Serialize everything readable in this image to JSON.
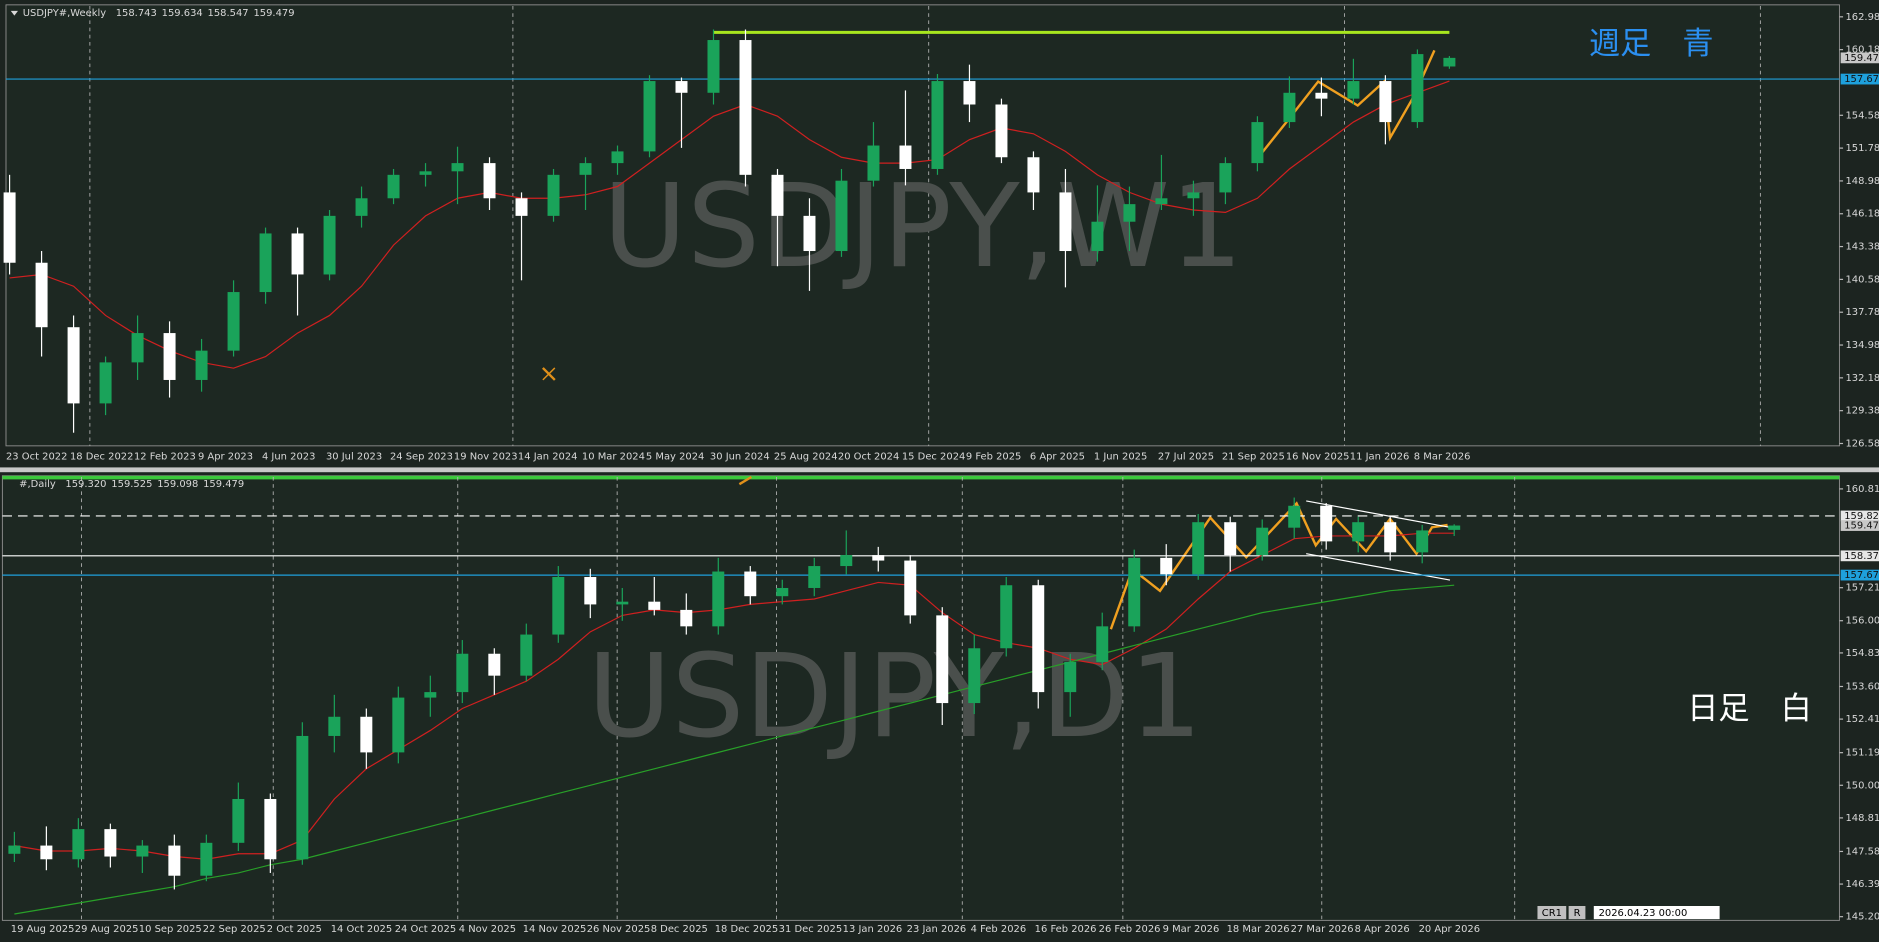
{
  "chart_data": [
    {
      "type": "candlestick",
      "header": {
        "symbol": "USDJPY#,Weekly",
        "ohlc": [
          "158.743",
          "159.634",
          "158.547",
          "159.479"
        ]
      },
      "watermark": "USDJPY,W1",
      "annotation": "週足　青",
      "annotation_color": "#2b8ff0",
      "bull_color": "#1aa35a",
      "bear_color": "#ffffff",
      "categories": [
        "23 Oct 2022",
        null,
        "18 Dec 2022",
        null,
        "12 Feb 2023",
        null,
        "9 Apr 2023",
        null,
        "4 Jun 2023",
        null,
        "30 Jul 2023",
        null,
        "24 Sep 2023",
        null,
        "19 Nov 2023",
        null,
        "14 Jan 2024",
        null,
        "10 Mar 2024",
        null,
        "5 May 2024",
        null,
        "30 Jun 2024",
        null,
        "25 Aug 2024",
        null,
        "20 Oct 2024",
        null,
        "15 Dec 2024",
        null,
        "9 Feb 2025",
        null,
        "6 Apr 2025",
        null,
        "1 Jun 2025",
        null,
        "27 Jul 2025",
        null,
        "21 Sep 2025",
        null,
        "16 Nov 2025",
        null,
        "11 Jan 2026",
        null,
        "8 Mar 2026",
        null
      ],
      "open": [
        148,
        142,
        136.5,
        130,
        133.5,
        136,
        132,
        134.5,
        139.5,
        144.5,
        141,
        146,
        147.5,
        149.5,
        149.8,
        150.5,
        147.5,
        146,
        149.5,
        150.5,
        151.5,
        157.5,
        156.5,
        161,
        149.5,
        146,
        143,
        149,
        152,
        150,
        157.5,
        155.5,
        151,
        148,
        143,
        145.5,
        147,
        147.5,
        148,
        150.5,
        154,
        156.5,
        156,
        157.5,
        154,
        158.743
      ],
      "high": [
        149.5,
        143,
        137.5,
        134,
        137.5,
        137,
        135.5,
        140.5,
        145,
        145,
        146.5,
        148.5,
        150,
        150.5,
        151.9,
        151,
        148,
        150,
        151,
        152,
        158,
        157.8,
        161.9,
        161.9,
        150,
        147.5,
        150,
        154,
        156.7,
        158.1,
        158.9,
        156,
        151.5,
        150,
        148.6,
        148.5,
        151.2,
        149,
        151,
        154.5,
        157.9,
        157.8,
        159.4,
        158,
        160.2,
        159.634
      ],
      "low": [
        141,
        134,
        127.5,
        129,
        132,
        130.5,
        131,
        134,
        138.5,
        137.5,
        140.5,
        145,
        147,
        148.5,
        147,
        146.5,
        140.5,
        145.5,
        146.5,
        149.5,
        151,
        151.8,
        155.5,
        148.5,
        141.7,
        139.6,
        142.5,
        148.5,
        148.6,
        149.5,
        154,
        150.5,
        146.5,
        139.9,
        142.1,
        143,
        146.5,
        146,
        147,
        149.8,
        153.5,
        154.5,
        155.5,
        152.1,
        153.5,
        158.547
      ],
      "close": [
        142,
        136.5,
        130,
        133.5,
        136,
        132,
        134.5,
        139.5,
        144.5,
        141,
        146,
        147.5,
        149.5,
        149.8,
        150.5,
        147.5,
        146,
        149.5,
        150.5,
        151.5,
        157.5,
        156.5,
        161,
        149.5,
        146,
        143,
        149,
        152,
        150,
        157.5,
        155.5,
        151,
        148,
        143,
        145.5,
        147,
        147.5,
        148,
        150.5,
        154,
        156.5,
        156,
        157.5,
        154,
        159.8,
        159.479
      ],
      "ma": [
        {
          "color": "#d02020",
          "values": [
            140.7,
            141,
            140,
            137.5,
            135.8,
            134.5,
            133.5,
            133,
            134,
            136,
            137.5,
            140,
            143.5,
            146,
            147.5,
            148,
            147.5,
            147.5,
            147.8,
            148.5,
            150.5,
            152.5,
            154.5,
            155.5,
            154.5,
            152.5,
            151,
            150.5,
            150.5,
            150.8,
            152.5,
            153.5,
            153,
            151.5,
            149.5,
            148,
            147,
            146.5,
            146.3,
            147.5,
            150,
            152,
            154,
            155.5,
            156.5,
            157.5
          ]
        }
      ],
      "ylim": [
        126.38,
        163.9
      ],
      "yticks": [
        {
          "value": 162.98,
          "label": "162.980"
        },
        {
          "value": 160.18,
          "label": "160.180"
        },
        {
          "value": 154.58,
          "label": "154.580"
        },
        {
          "value": 151.78,
          "label": "151.780"
        },
        {
          "value": 148.98,
          "label": "148.980"
        },
        {
          "value": 146.18,
          "label": "146.180"
        },
        {
          "value": 143.38,
          "label": "143.380"
        },
        {
          "value": 140.58,
          "label": "140.580"
        },
        {
          "value": 137.78,
          "label": "137.780"
        },
        {
          "value": 134.98,
          "label": "134.980"
        },
        {
          "value": 132.18,
          "label": "132.180"
        },
        {
          "value": 129.38,
          "label": "129.380"
        },
        {
          "value": 126.58,
          "label": "126.580"
        }
      ],
      "hlines": [
        {
          "value": 157.67,
          "color": "#1ea0dc",
          "style": "solid"
        },
        {
          "value": 161.65,
          "color": "#a8e61e",
          "style": "thick",
          "from": 22,
          "to": 45
        }
      ],
      "price_labels": [
        {
          "value": 159.479,
          "label": "159.479",
          "color": "#c8c8c8"
        },
        {
          "value": 157.67,
          "label": "157.67",
          "color": "#1ea0dc"
        }
      ]
    },
    {
      "type": "candlestick",
      "header": {
        "symbol": "#,Daily",
        "ohlc": [
          "159.320",
          "159.525",
          "159.098",
          "159.479"
        ]
      },
      "watermark": "USDJPY,D1",
      "annotation": "日足　白",
      "annotation_color": "#ffffff",
      "bull_color": "#1aa35a",
      "bear_color": "#ffffff",
      "categories": [
        "19 Aug 2025",
        null,
        "29 Aug 2025",
        null,
        "10 Sep 2025",
        null,
        "22 Sep 2025",
        null,
        "2 Oct 2025",
        null,
        "14 Oct 2025",
        null,
        "24 Oct 2025",
        null,
        "4 Nov 2025",
        null,
        "14 Nov 2025",
        null,
        "26 Nov 2025",
        null,
        "8 Dec 2025",
        null,
        "18 Dec 2025",
        null,
        "31 Dec 2025",
        null,
        "13 Jan 2026",
        null,
        "23 Jan 2026",
        null,
        "4 Feb 2026",
        null,
        "16 Feb 2026",
        null,
        "26 Feb 2026",
        null,
        "9 Mar 2026",
        null,
        "18 Mar 2026",
        null,
        "27 Mar 2026",
        null,
        "8 Apr 2026",
        null,
        "20 Apr 2026",
        null
      ],
      "open": [
        147.5,
        147.8,
        147.3,
        148.4,
        147.4,
        147.8,
        146.7,
        147.9,
        149.5,
        147.3,
        151.8,
        152.5,
        151.2,
        153.2,
        153.4,
        154.8,
        154,
        155.5,
        157.6,
        156.6,
        156.7,
        156.4,
        155.8,
        157.8,
        156.9,
        157.2,
        158,
        158.4,
        158.2,
        156.2,
        153,
        155,
        157.3,
        153.4,
        154.5,
        155.8,
        158.3,
        157.7,
        159.6,
        158.4,
        159.4,
        160.2,
        158.9,
        159.6,
        158.5,
        159.32
      ],
      "high": [
        148.3,
        148.5,
        148.8,
        148.6,
        148,
        148.2,
        148.2,
        150.1,
        149.7,
        152.3,
        153.3,
        152.8,
        153.6,
        154,
        155.3,
        155,
        155.9,
        158,
        157.9,
        157.2,
        157.6,
        157,
        158.3,
        158,
        157.5,
        158.3,
        159.3,
        158.7,
        158.4,
        156.5,
        155.5,
        157.6,
        157.5,
        154.8,
        156.3,
        158.6,
        158.8,
        159.9,
        159.8,
        159.7,
        160.5,
        160.3,
        159.8,
        159.8,
        159.5,
        159.525
      ],
      "low": [
        147.2,
        146.9,
        147,
        147,
        146.8,
        146.2,
        146.5,
        147.6,
        146.8,
        147.1,
        151.2,
        150.6,
        150.8,
        152.5,
        153,
        153.3,
        153.8,
        155.2,
        156.1,
        156,
        156.2,
        155.5,
        155.5,
        156.6,
        156.6,
        156.9,
        157.7,
        157.8,
        155.9,
        152.2,
        152.6,
        154.7,
        152.8,
        152.5,
        154.2,
        155.6,
        157.3,
        157.5,
        157.8,
        158.2,
        159,
        158.6,
        158.5,
        158.2,
        158.1,
        159.098
      ],
      "close": [
        147.8,
        147.3,
        148.4,
        147.4,
        147.8,
        146.7,
        147.9,
        149.5,
        147.3,
        151.8,
        152.5,
        151.2,
        153.2,
        153.4,
        154.8,
        154,
        155.5,
        157.6,
        156.6,
        156.7,
        156.4,
        155.8,
        157.8,
        156.9,
        157.2,
        158,
        158.4,
        158.2,
        156.2,
        153,
        155,
        157.3,
        153.4,
        154.5,
        155.8,
        158.3,
        157.7,
        159.6,
        158.4,
        159.4,
        160.2,
        158.9,
        159.6,
        158.5,
        159.3,
        159.479
      ],
      "ma": [
        {
          "color": "#d02020",
          "values": [
            147.8,
            147.6,
            147.6,
            147.7,
            147.6,
            147.4,
            147.3,
            147.5,
            147.5,
            148,
            149.5,
            150.6,
            151.3,
            152,
            152.8,
            153.3,
            153.8,
            154.6,
            155.6,
            156.2,
            156.4,
            156.3,
            156.4,
            156.6,
            156.7,
            156.8,
            157.1,
            157.4,
            157.3,
            156.3,
            155.5,
            155.2,
            155,
            154.6,
            154.4,
            155,
            155.7,
            156.8,
            157.8,
            158.4,
            159,
            159.1,
            159.1,
            159.1,
            159.2,
            159.2
          ]
        },
        {
          "color": "#28a028",
          "values": [
            145.3,
            145.5,
            145.7,
            145.9,
            146.1,
            146.3,
            146.6,
            146.8,
            147.1,
            147.3,
            147.6,
            147.9,
            148.2,
            148.5,
            148.8,
            149.1,
            149.4,
            149.7,
            150,
            150.3,
            150.6,
            150.9,
            151.2,
            151.5,
            151.8,
            152.1,
            152.4,
            152.7,
            153,
            153.3,
            153.6,
            153.9,
            154.2,
            154.5,
            154.8,
            155.1,
            155.4,
            155.7,
            156,
            156.3,
            156.5,
            156.7,
            156.9,
            157.1,
            157.2,
            157.3
          ]
        }
      ],
      "ylim": [
        145.07,
        161.25
      ],
      "yticks": [
        {
          "value": 160.815,
          "label": "160.815"
        },
        {
          "value": 157.21,
          "label": "157.210"
        },
        {
          "value": 156.005,
          "label": "156.005"
        },
        {
          "value": 154.83,
          "label": "154.830"
        },
        {
          "value": 153.605,
          "label": "153.605"
        },
        {
          "value": 152.415,
          "label": "152.415"
        },
        {
          "value": 151.19,
          "label": "151.190"
        },
        {
          "value": 150,
          "label": "150.000"
        },
        {
          "value": 148.81,
          "label": "148.810"
        },
        {
          "value": 147.585,
          "label": "147.585"
        },
        {
          "value": 146.395,
          "label": "146.395"
        },
        {
          "value": 145.205,
          "label": "145.205"
        }
      ],
      "hlines": [
        {
          "value": 159.828,
          "color": "#ffffff",
          "style": "dashed"
        },
        {
          "value": 158.373,
          "color": "#ffffff",
          "style": "solid"
        },
        {
          "value": 157.67,
          "color": "#1ea0dc",
          "style": "solid"
        }
      ],
      "price_labels": [
        {
          "value": 159.828,
          "label": "159.828",
          "color": "#e6e6e6"
        },
        {
          "value": 159.479,
          "label": "159.479",
          "color": "#c8c8c8"
        },
        {
          "value": 158.373,
          "label": "158.373",
          "color": "#e6e6e6"
        },
        {
          "value": 157.67,
          "label": "157.67",
          "color": "#1ea0dc"
        }
      ]
    }
  ],
  "status": {
    "mode": "CR1",
    "flag": "R",
    "time": "2026.04.23 00:00"
  }
}
